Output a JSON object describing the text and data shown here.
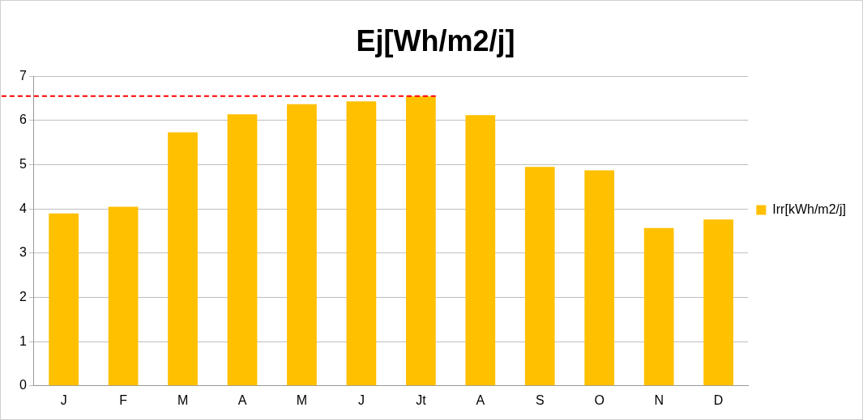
{
  "chart_data": {
    "type": "bar",
    "title": "Ej[Wh/m2/j]",
    "categories": [
      "J",
      "F",
      "M",
      "A",
      "M",
      "J",
      "Jt",
      "A",
      "S",
      "O",
      "N",
      "D"
    ],
    "series": [
      {
        "name": "Irr[kWh/m2/j]",
        "color": "#ffc000",
        "values": [
          3.9,
          4.05,
          5.73,
          6.14,
          6.37,
          6.43,
          6.55,
          6.12,
          4.95,
          4.87,
          3.57,
          3.76
        ]
      }
    ],
    "ylim": [
      0,
      7
    ],
    "yticks": [
      0,
      1,
      2,
      3,
      4,
      5,
      6,
      7
    ],
    "grid": "y",
    "legend": "right",
    "ref_lines": [
      {
        "axis": "y",
        "value": 6.55,
        "color": "#ff0000",
        "line_style": "dashed"
      }
    ]
  }
}
